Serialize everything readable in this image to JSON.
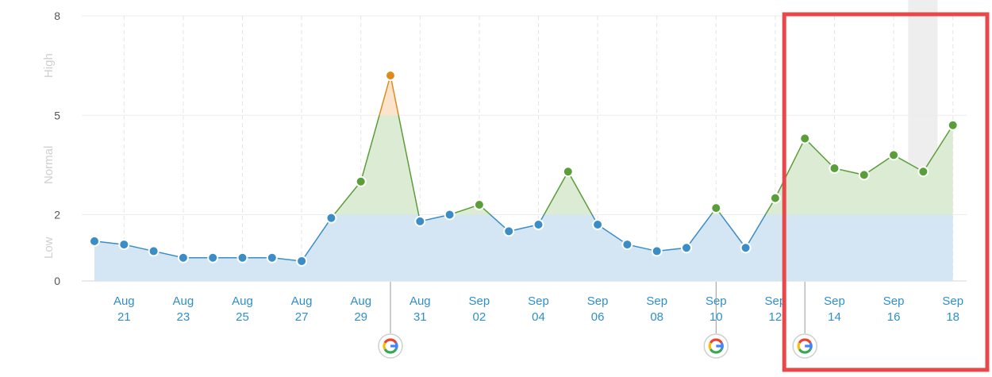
{
  "chart_data": {
    "type": "line",
    "ylim": [
      0,
      8
    ],
    "y_ticks": [
      {
        "value": 0,
        "label": "0"
      },
      {
        "value": 2,
        "label": "2"
      },
      {
        "value": 5,
        "label": "5"
      },
      {
        "value": 8,
        "label": "8"
      }
    ],
    "zones": [
      {
        "label": "Low",
        "from": 0,
        "to": 2
      },
      {
        "label": "Normal",
        "from": 2,
        "to": 5
      },
      {
        "label": "High",
        "from": 5,
        "to": 8
      }
    ],
    "x": [
      "2023-08-20",
      "2023-08-21",
      "2023-08-22",
      "2023-08-23",
      "2023-08-24",
      "2023-08-25",
      "2023-08-26",
      "2023-08-27",
      "2023-08-28",
      "2023-08-29",
      "2023-08-30",
      "2023-08-31",
      "2023-09-01",
      "2023-09-02",
      "2023-09-03",
      "2023-09-04",
      "2023-09-05",
      "2023-09-06",
      "2023-09-07",
      "2023-09-08",
      "2023-09-09",
      "2023-09-10",
      "2023-09-11",
      "2023-09-12",
      "2023-09-13",
      "2023-09-14",
      "2023-09-15",
      "2023-09-16",
      "2023-09-17",
      "2023-09-18"
    ],
    "values": [
      1.2,
      1.1,
      0.9,
      0.7,
      0.7,
      0.7,
      0.7,
      0.6,
      1.9,
      3.0,
      6.2,
      1.8,
      2.0,
      2.3,
      1.5,
      1.7,
      3.3,
      1.7,
      1.1,
      0.9,
      1.0,
      2.2,
      1.0,
      2.5,
      4.3,
      3.4,
      3.2,
      3.8,
      3.3,
      4.7
    ],
    "x_tick_labels": [
      {
        "date": "2023-08-21",
        "month": "Aug",
        "day": "21"
      },
      {
        "date": "2023-08-23",
        "month": "Aug",
        "day": "23"
      },
      {
        "date": "2023-08-25",
        "month": "Aug",
        "day": "25"
      },
      {
        "date": "2023-08-27",
        "month": "Aug",
        "day": "27"
      },
      {
        "date": "2023-08-29",
        "month": "Aug",
        "day": "29"
      },
      {
        "date": "2023-08-31",
        "month": "Aug",
        "day": "31"
      },
      {
        "date": "2023-09-02",
        "month": "Sep",
        "day": "02"
      },
      {
        "date": "2023-09-04",
        "month": "Sep",
        "day": "04"
      },
      {
        "date": "2023-09-06",
        "month": "Sep",
        "day": "06"
      },
      {
        "date": "2023-09-08",
        "month": "Sep",
        "day": "08"
      },
      {
        "date": "2023-09-10",
        "month": "Sep",
        "day": "10"
      },
      {
        "date": "2023-09-12",
        "month": "Sep",
        "day": "12"
      },
      {
        "date": "2023-09-14",
        "month": "Sep",
        "day": "14"
      },
      {
        "date": "2023-09-16",
        "month": "Sep",
        "day": "16"
      },
      {
        "date": "2023-09-18",
        "month": "Sep",
        "day": "18"
      }
    ],
    "annotations": [
      {
        "icon": "google-icon",
        "date": "2023-08-30",
        "label": "G"
      },
      {
        "icon": "google-icon",
        "date": "2023-09-10",
        "label": "G"
      },
      {
        "icon": "google-icon",
        "date": "2023-09-13",
        "label": "G"
      }
    ],
    "highlight_band": {
      "date": "2023-09-17"
    },
    "colors": {
      "low_point": "#3a8dc6",
      "normal_point": "#5a9e3a",
      "high_point": "#e08a1e",
      "low_fill": "#d4e6f3",
      "normal_fill": "#dcebd3",
      "high_fill": "#fbe3cc",
      "low_line": "#3a8dc6",
      "normal_line": "#5a9e3a",
      "high_line": "#e08a1e",
      "tick_text": "#2f8fc8",
      "box": "#e8484a"
    },
    "grid": true,
    "highlight_box": {
      "from": "2023-09-13",
      "to": "2023-09-18"
    }
  }
}
